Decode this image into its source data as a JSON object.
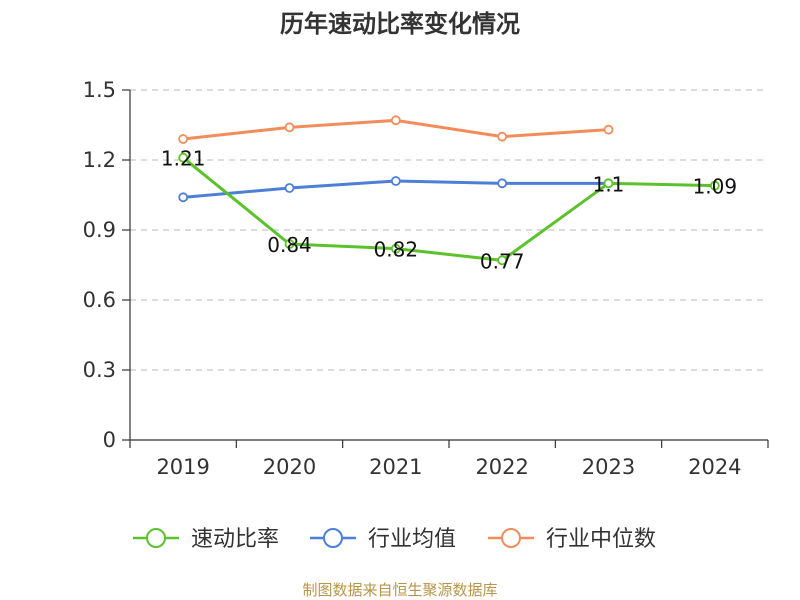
{
  "chart_data": {
    "type": "line",
    "title": "历年速动比率变化情况",
    "categories": [
      "2019",
      "2020",
      "2021",
      "2022",
      "2023",
      "2024"
    ],
    "ylim": [
      0,
      1.5
    ],
    "yticks": [
      "0",
      "0.3",
      "0.6",
      "0.9",
      "1.2",
      "1.5"
    ],
    "grid": true,
    "legend_position": "bottom",
    "series": [
      {
        "name": "速动比率",
        "color": "#5cc22c",
        "values": [
          1.21,
          0.84,
          0.82,
          0.77,
          1.1,
          1.09
        ],
        "labels": [
          "1.21",
          "0.84",
          "0.82",
          "0.77",
          "1.1",
          "1.09"
        ]
      },
      {
        "name": "行业均值",
        "color": "#4e7fd6",
        "values": [
          1.04,
          1.08,
          1.11,
          1.1,
          1.1,
          null
        ]
      },
      {
        "name": "行业中位数",
        "color": "#f28c5a",
        "values": [
          1.29,
          1.34,
          1.37,
          1.3,
          1.33,
          null
        ]
      }
    ]
  },
  "source": "制图数据来自恒生聚源数据库"
}
